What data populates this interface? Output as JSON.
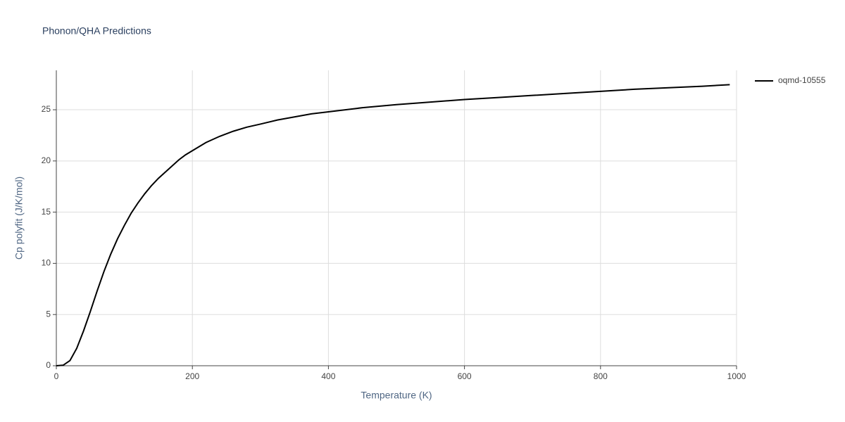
{
  "chart_data": {
    "type": "line",
    "title": "Phonon/QHA Predictions",
    "xlabel": "Temperature (K)",
    "ylabel": "Cp polyfit (J/K/mol)",
    "x": [
      0,
      10,
      20,
      30,
      40,
      50,
      60,
      70,
      80,
      90,
      100,
      110,
      120,
      130,
      140,
      150,
      160,
      170,
      180,
      190,
      200,
      220,
      240,
      260,
      280,
      300,
      325,
      350,
      375,
      400,
      450,
      500,
      550,
      600,
      650,
      700,
      750,
      800,
      850,
      900,
      950,
      990
    ],
    "series": [
      {
        "name": "oqmd-10555",
        "color": "#000000",
        "values": [
          0,
          0.05,
          0.5,
          1.7,
          3.4,
          5.3,
          7.3,
          9.2,
          10.9,
          12.4,
          13.7,
          14.9,
          15.9,
          16.8,
          17.6,
          18.3,
          18.9,
          19.5,
          20.1,
          20.6,
          21.0,
          21.8,
          22.4,
          22.9,
          23.3,
          23.6,
          24.0,
          24.3,
          24.6,
          24.8,
          25.2,
          25.5,
          25.75,
          26.0,
          26.2,
          26.4,
          26.6,
          26.8,
          27.0,
          27.15,
          27.3,
          27.45
        ]
      }
    ],
    "xlim": [
      0,
      1000
    ],
    "xticks": [
      0,
      200,
      400,
      600,
      800,
      1000
    ],
    "ylim": [
      0,
      28.85
    ],
    "yticks": [
      0,
      5,
      10,
      15,
      20,
      25
    ],
    "grid": true,
    "legend": "right"
  }
}
